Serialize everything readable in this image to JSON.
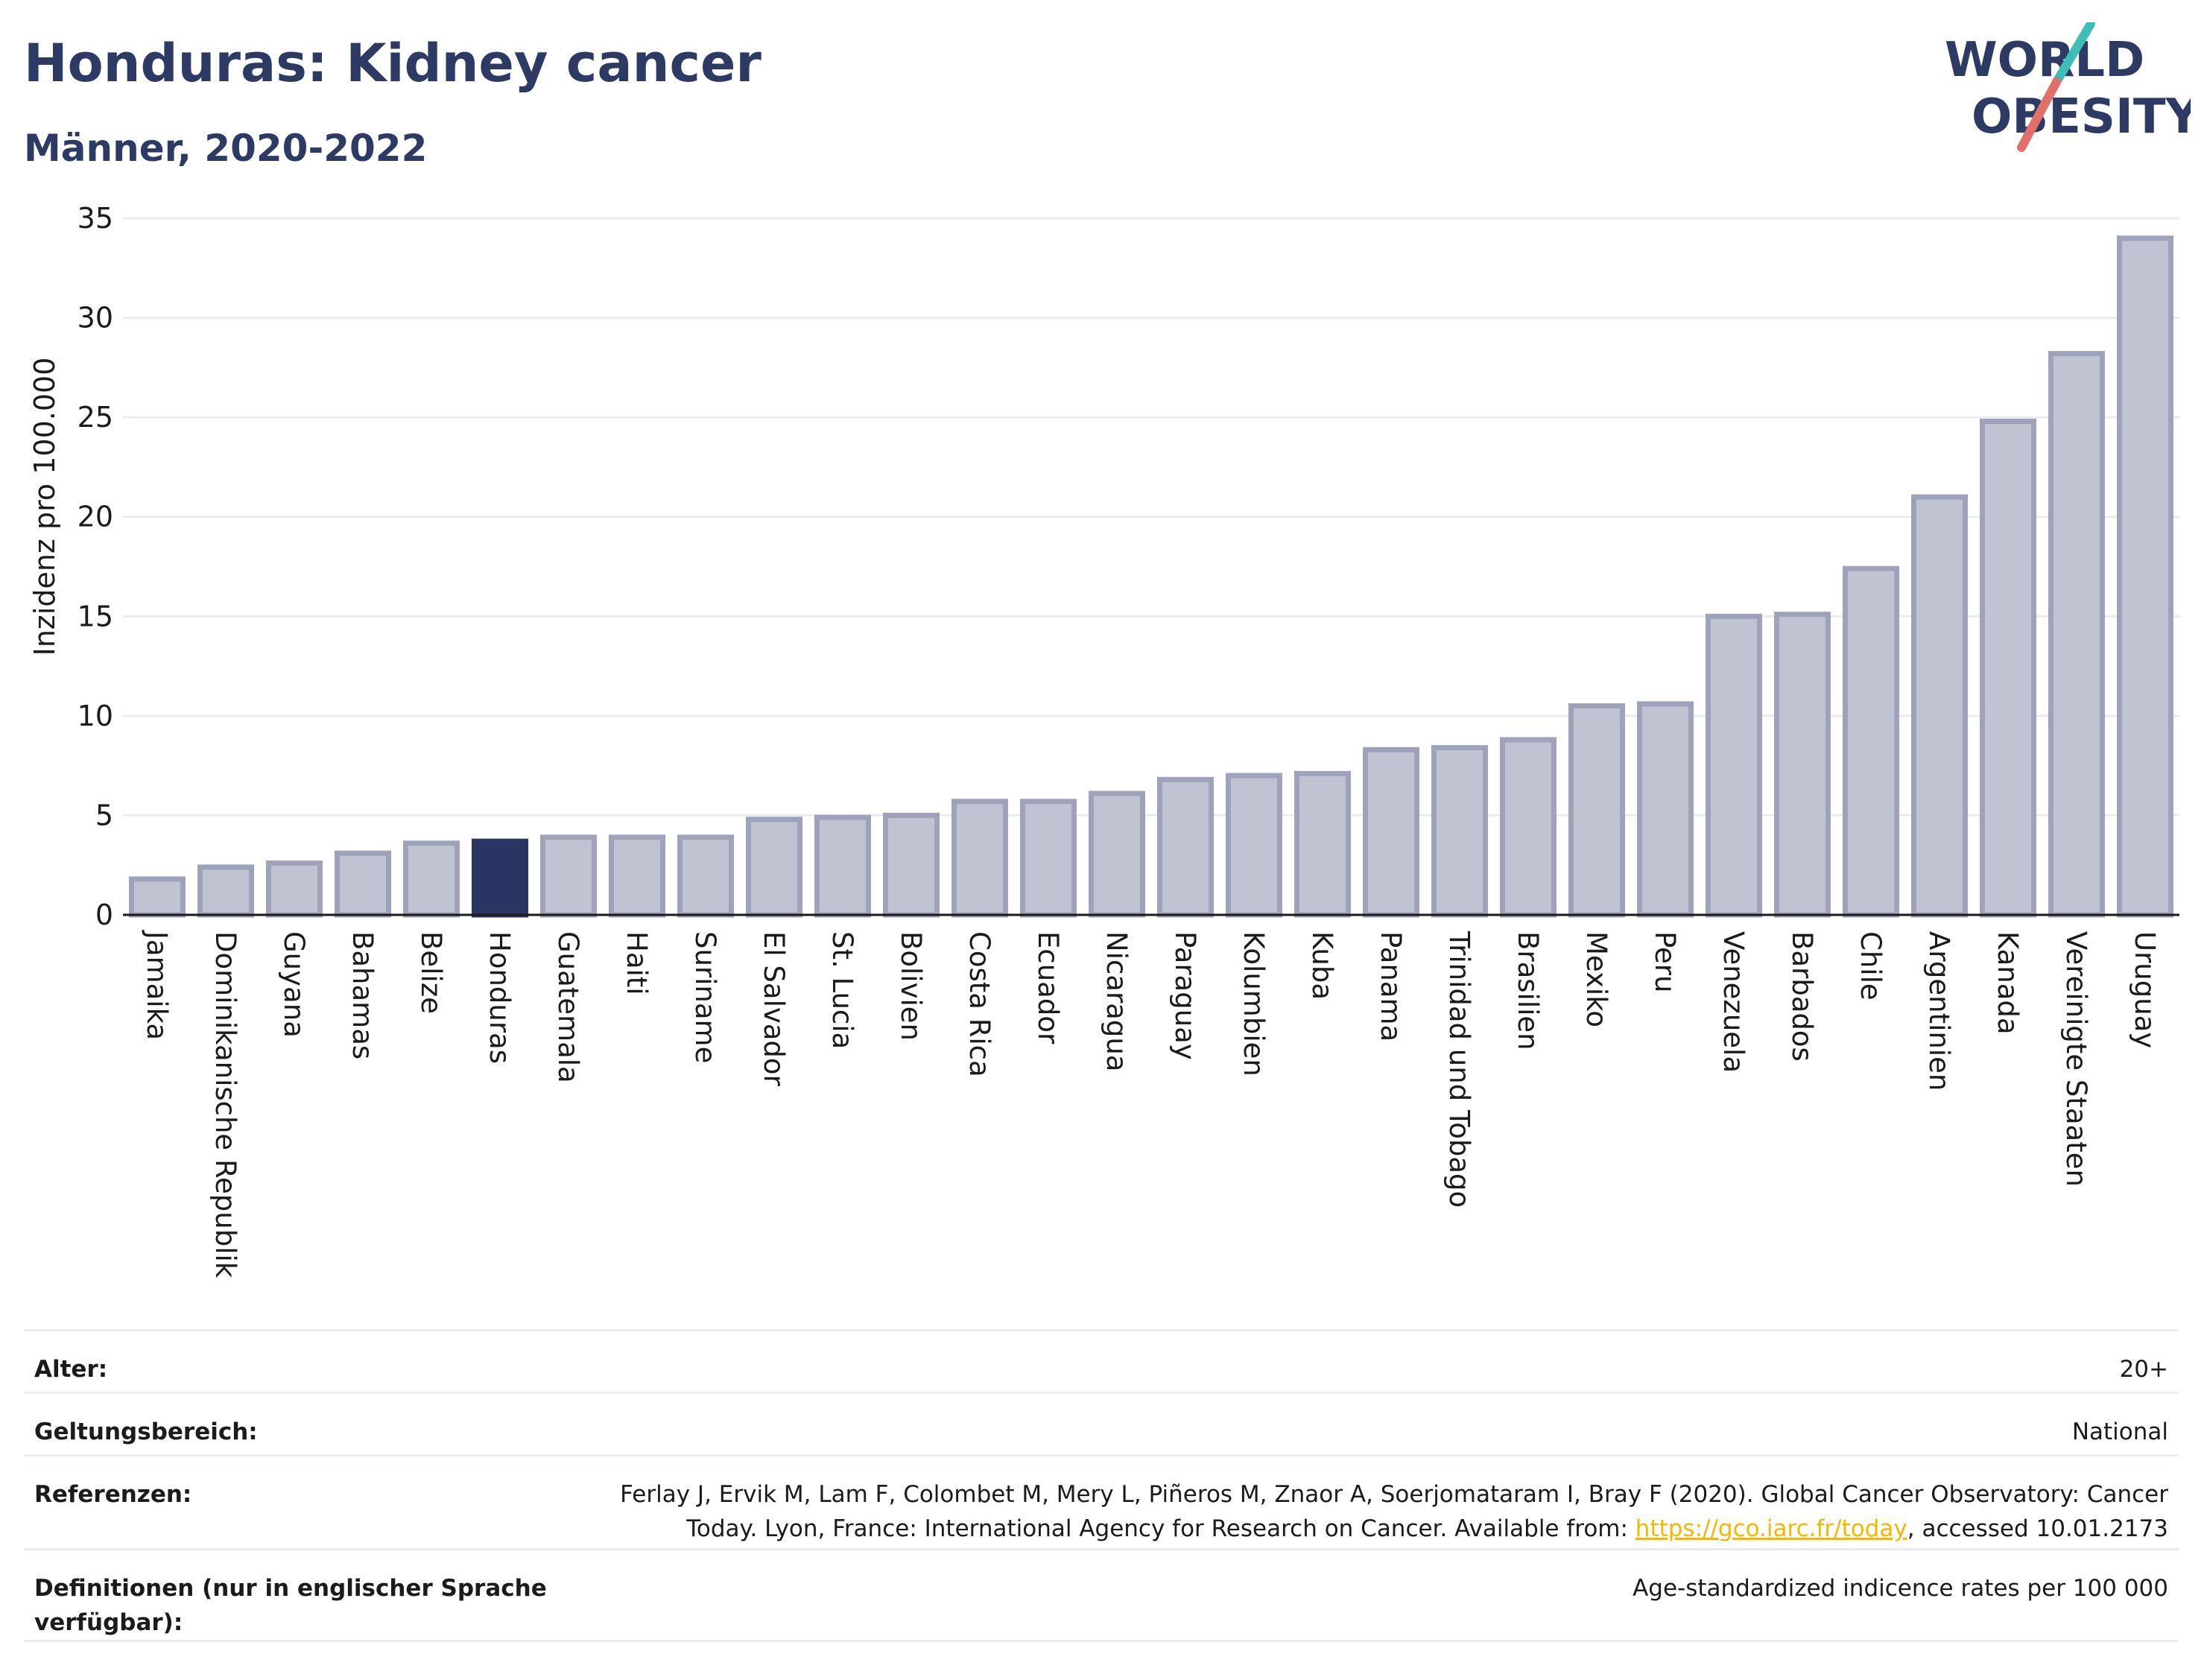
{
  "title": "Honduras: Kidney cancer",
  "subtitle": "Männer, 2020-2022",
  "logo": {
    "line1": "WORLD",
    "line2": "OBESITY",
    "text_color": "#2d3a63",
    "slash_colors": [
      "#3dbfb8",
      "#e2706a"
    ]
  },
  "colors": {
    "bar": "#c0c4d2",
    "bar_border": "#9ea3bb",
    "highlight": "#2a3563",
    "grid": "#e9ebf2",
    "axis": "#1b1b1b"
  },
  "chart_data": {
    "type": "bar",
    "title": "Honduras: Kidney cancer",
    "subtitle": "Männer, 2020-2022",
    "xlabel": "",
    "ylabel": "Inzidenz pro 100.000",
    "ylim": [
      0,
      35
    ],
    "yticks": [
      0,
      5,
      10,
      15,
      20,
      25,
      30,
      35
    ],
    "grid": true,
    "highlight": "Honduras",
    "categories": [
      "Jamaika",
      "Dominikanische Republik",
      "Guyana",
      "Bahamas",
      "Belize",
      "Honduras",
      "Guatemala",
      "Haiti",
      "Suriname",
      "El Salvador",
      "St. Lucia",
      "Bolivien",
      "Costa Rica",
      "Ecuador",
      "Nicaragua",
      "Paraguay",
      "Kolumbien",
      "Kuba",
      "Panama",
      "Trinidad und Tobago",
      "Brasilien",
      "Mexiko",
      "Peru",
      "Venezuela",
      "Barbados",
      "Chile",
      "Argentinien",
      "Kanada",
      "Vereinigte Staaten",
      "Uruguay"
    ],
    "values": [
      1.8,
      2.4,
      2.6,
      3.1,
      3.6,
      3.7,
      3.9,
      3.9,
      3.9,
      4.8,
      4.9,
      5.0,
      5.7,
      5.7,
      6.1,
      6.8,
      7.0,
      7.1,
      8.3,
      8.4,
      8.8,
      10.5,
      10.6,
      15.0,
      15.1,
      17.4,
      21.0,
      24.8,
      28.2,
      34.0
    ]
  },
  "meta": [
    {
      "key": "Alter:",
      "value": "20+"
    },
    {
      "key": "Geltungsbereich:",
      "value": "National"
    },
    {
      "key": "Referenzen:",
      "value_pre": "Ferlay J, Ervik M, Lam F, Colombet M, Mery L, Piñeros M, Znaor A, Soerjomataram I, Bray F (2020). Global Cancer Observatory: Cancer Today. Lyon, France: International Agency for Research on Cancer. Available from: ",
      "link": "https://gco.iarc.fr/today",
      "value_post": ", accessed 10.01.2173"
    },
    {
      "key": "Definitionen (nur in englischer Sprache verfügbar):",
      "value": "Age-standardized indicence rates per 100 000"
    }
  ]
}
